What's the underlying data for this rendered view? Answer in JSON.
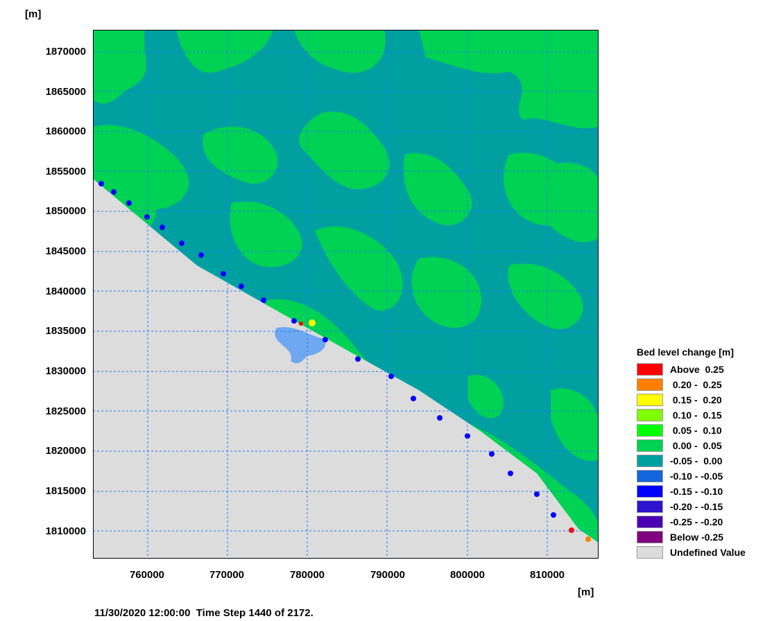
{
  "axes": {
    "unit_top": "[m]",
    "unit_bottom": "[m]",
    "y_ticks": [
      "1870000",
      "1865000",
      "1860000",
      "1855000",
      "1850000",
      "1845000",
      "1840000",
      "1835000",
      "1830000",
      "1825000",
      "1820000",
      "1815000",
      "1810000"
    ],
    "x_ticks": [
      "760000",
      "770000",
      "780000",
      "790000",
      "800000",
      "810000"
    ],
    "x_range_m": [
      753100,
      816400
    ],
    "y_range_m": [
      1806100,
      1872400
    ]
  },
  "footer": {
    "status": "11/30/2020 12:00:00  Time Step 1440 of 2172."
  },
  "legend": {
    "title": "Bed level change [m]",
    "items": [
      {
        "label": "Above  0.25",
        "color": "#ff0000"
      },
      {
        "label": " 0.20 -  0.25",
        "color": "#ff8000"
      },
      {
        "label": " 0.15 -  0.20",
        "color": "#ffff00"
      },
      {
        "label": " 0.10 -  0.15",
        "color": "#80ff00"
      },
      {
        "label": " 0.05 -  0.10",
        "color": "#00ff00"
      },
      {
        "label": " 0.00 -  0.05",
        "color": "#00d254"
      },
      {
        "label": "-0.05 -  0.00",
        "color": "#00a0a0"
      },
      {
        "label": "-0.10 - -0.05",
        "color": "#1464dc"
      },
      {
        "label": "-0.15 - -0.10",
        "color": "#0000ff"
      },
      {
        "label": "-0.20 - -0.15",
        "color": "#2e14cc"
      },
      {
        "label": "-0.25 - -0.20",
        "color": "#4b00b4"
      },
      {
        "label": "Below -0.25",
        "color": "#800080"
      },
      {
        "label": "Undefined Value",
        "color": "#dcdcdc"
      }
    ]
  },
  "map": {
    "land_color": "#dcdcdc",
    "grid_color": "#1e78ff",
    "base_color": "#00a0a0",
    "accent_color": "#00d254",
    "lagoon_color": "#6ea8f0"
  }
}
